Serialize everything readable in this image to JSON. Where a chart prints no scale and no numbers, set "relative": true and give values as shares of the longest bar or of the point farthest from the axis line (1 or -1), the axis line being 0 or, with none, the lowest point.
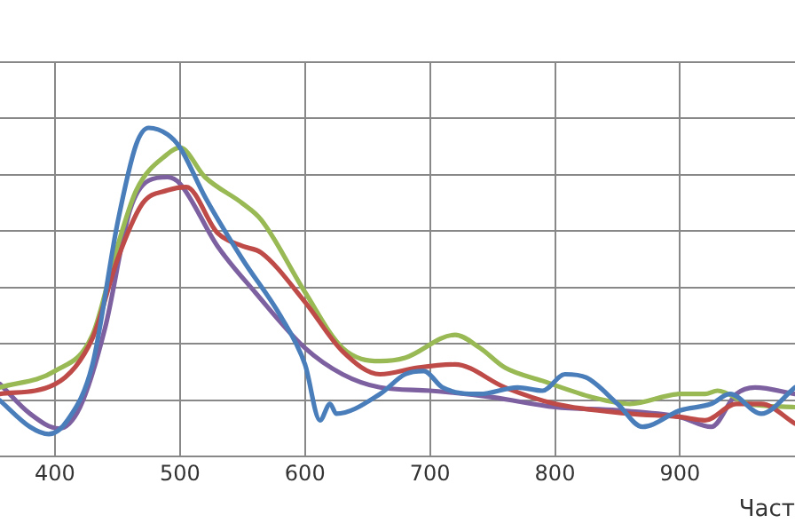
{
  "chart_data": {
    "type": "line",
    "relative": true,
    "xlabel": "Част",
    "xlim": [
      356,
      992
    ],
    "xticks": [
      400,
      500,
      600,
      700,
      800,
      900
    ],
    "grid": true,
    "legend": false,
    "marker": "none",
    "line_style": "solid",
    "series": [
      {
        "color": "#4a7ebb",
        "x": [
          356,
          380,
          395,
          410,
          430,
          450,
          465,
          475,
          490,
          500,
          520,
          550,
          580,
          600,
          612,
          620,
          625,
          660,
          680,
          695,
          710,
          740,
          770,
          790,
          808,
          825,
          850,
          870,
          900,
          925,
          940,
          965,
          992
        ],
        "values": [
          0.17,
          0.09,
          0.068,
          0.11,
          0.28,
          0.71,
          0.95,
          1.0,
          0.98,
          0.94,
          0.79,
          0.6,
          0.43,
          0.28,
          0.11,
          0.16,
          0.13,
          0.19,
          0.25,
          0.26,
          0.21,
          0.19,
          0.21,
          0.2,
          0.25,
          0.24,
          0.16,
          0.09,
          0.14,
          0.16,
          0.19,
          0.13,
          0.21
        ]
      },
      {
        "color": "#be4b48",
        "x": [
          356,
          400,
          430,
          450,
          470,
          490,
          505,
          530,
          550,
          565,
          600,
          630,
          660,
          690,
          720,
          760,
          800,
          860,
          900,
          920,
          945,
          965,
          992
        ],
        "values": [
          0.19,
          0.22,
          0.36,
          0.6,
          0.77,
          0.81,
          0.82,
          0.68,
          0.64,
          0.62,
          0.47,
          0.32,
          0.25,
          0.27,
          0.28,
          0.21,
          0.16,
          0.13,
          0.12,
          0.11,
          0.16,
          0.16,
          0.1
        ]
      },
      {
        "color": "#98b954",
        "x": [
          356,
          400,
          430,
          450,
          465,
          490,
          500,
          520,
          550,
          565,
          600,
          630,
          660,
          680,
          720,
          740,
          760,
          790,
          830,
          860,
          900,
          920,
          930,
          955,
          992
        ],
        "values": [
          0.21,
          0.26,
          0.37,
          0.64,
          0.81,
          0.92,
          0.94,
          0.85,
          0.77,
          0.72,
          0.5,
          0.33,
          0.29,
          0.3,
          0.37,
          0.33,
          0.27,
          0.23,
          0.18,
          0.16,
          0.19,
          0.19,
          0.2,
          0.16,
          0.15
        ]
      },
      {
        "color": "#7d60a0",
        "x": [
          356,
          380,
          403,
          420,
          440,
          460,
          475,
          490,
          500,
          530,
          560,
          600,
          630,
          660,
          700,
          750,
          800,
          850,
          900,
          925,
          945,
          960,
          992
        ],
        "values": [
          0.22,
          0.13,
          0.085,
          0.15,
          0.39,
          0.75,
          0.84,
          0.85,
          0.83,
          0.64,
          0.5,
          0.33,
          0.25,
          0.21,
          0.2,
          0.18,
          0.15,
          0.14,
          0.12,
          0.09,
          0.19,
          0.21,
          0.19
        ]
      }
    ]
  }
}
